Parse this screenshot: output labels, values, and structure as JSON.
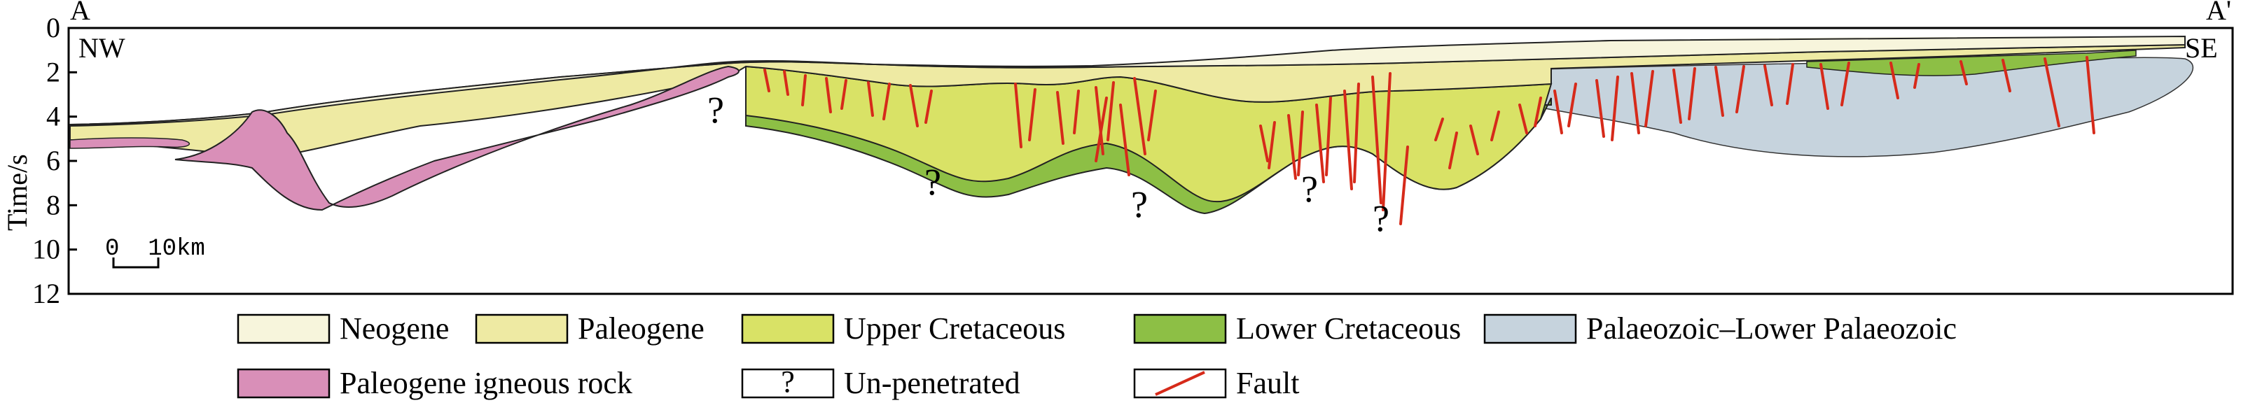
{
  "profile": {
    "start_point": "A",
    "end_point": "A'",
    "start_direction": "NW",
    "end_direction": "SE"
  },
  "axis": {
    "label": "Time/s",
    "ticks": [
      "0",
      "2",
      "4",
      "6",
      "8",
      "10",
      "12"
    ]
  },
  "scale_bar": {
    "label": "0  10km"
  },
  "unpenetrated_marks": [
    "?",
    "?",
    "?",
    "?",
    "?"
  ],
  "colors": {
    "neogene": "#f7f5dc",
    "paleogene": "#eeeaa3",
    "upper_cretaceous": "#d9e266",
    "lower_cretaceous": "#8dbf45",
    "palaeozoic": "#c6d3dd",
    "igneous": "#d98fb8",
    "fault": "#d62a1a"
  },
  "legend": [
    {
      "key": "neogene",
      "label": "Neogene"
    },
    {
      "key": "paleogene",
      "label": "Paleogene"
    },
    {
      "key": "upper_cretaceous",
      "label": "Upper Cretaceous"
    },
    {
      "key": "lower_cretaceous",
      "label": "Lower Cretaceous"
    },
    {
      "key": "palaeozoic",
      "label": "Palaeozoic–Lower Palaeozoic"
    },
    {
      "key": "igneous",
      "label": "Paleogene igneous rock"
    },
    {
      "key": "unpenetrated",
      "label": "Un-penetrated",
      "symbol": "?"
    },
    {
      "key": "fault",
      "label": "Fault"
    }
  ]
}
